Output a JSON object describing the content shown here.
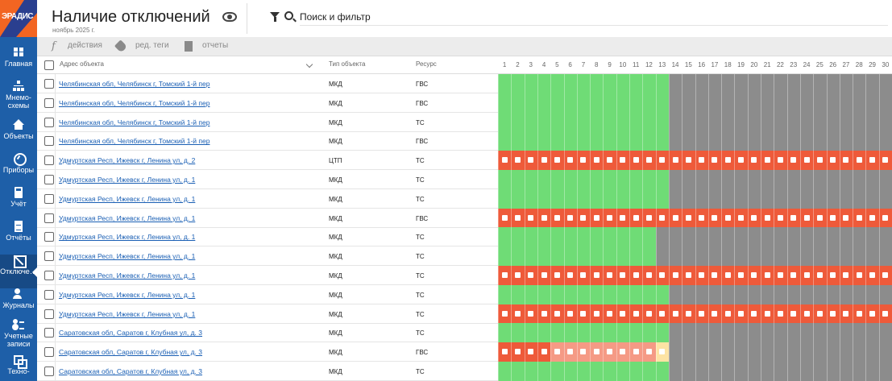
{
  "sidebar": {
    "logo_text": "ЭРАДИС",
    "items": [
      {
        "label": "Главная",
        "icon": "grid-icon",
        "cls": "i-grid",
        "active": false
      },
      {
        "label": "Мнемо-\nсхемы",
        "icon": "mnemonic-scheme-icon",
        "cls": "i-tree",
        "active": false
      },
      {
        "label": "Объекты",
        "icon": "home-icon",
        "cls": "i-home",
        "active": false
      },
      {
        "label": "Приборы",
        "icon": "gauge-icon",
        "cls": "i-gauge",
        "active": false
      },
      {
        "label": "Учёт",
        "icon": "calculator-icon",
        "cls": "i-calc",
        "active": false
      },
      {
        "label": "Отчёты",
        "icon": "document-icon",
        "cls": "i-doc",
        "active": false
      },
      {
        "label": "Отключе…",
        "icon": "outage-icon",
        "cls": "i-off",
        "active": true
      },
      {
        "label": "Журналы",
        "icon": "journal-icon",
        "cls": "i-journal",
        "active": false
      },
      {
        "label": "Учетные\nзаписи",
        "icon": "users-icon",
        "cls": "i-users",
        "active": false
      },
      {
        "label": "Техно-",
        "icon": "tech-icon",
        "cls": "i-tech",
        "active": false
      }
    ]
  },
  "header": {
    "title": "Наличие отключений",
    "subtitle": "ноябрь 2025 г.",
    "search_placeholder": "Поиск и фильтр"
  },
  "toolbar": {
    "actions_label": "действия",
    "tags_label": "ред. теги",
    "reports_label": "отчеты"
  },
  "table": {
    "columns": {
      "address": "Адрес объекта",
      "type": "Тип объекта",
      "resource": "Ресурс"
    },
    "days": [
      "1",
      "2",
      "3",
      "4",
      "5",
      "6",
      "7",
      "8",
      "9",
      "10",
      "11",
      "12",
      "13",
      "14",
      "15",
      "16",
      "17",
      "18",
      "19",
      "20",
      "21",
      "22",
      "23",
      "24",
      "25",
      "26",
      "27",
      "28",
      "29",
      "30"
    ],
    "status_colors": {
      "ok": "#6fdc76",
      "outage": "#ee5a3a",
      "partial": "#f59a85",
      "warn": "#fde3a4",
      "future": "#8c8c8c"
    },
    "rows": [
      {
        "address": "Челябинская обл, Челябинск г, Томский 1-й пер",
        "type": "МКД",
        "resource": "ГВС",
        "cells": "gggggggggggggfffffffffffffffff"
      },
      {
        "address": "Челябинская обл, Челябинск г, Томский 1-й пер",
        "type": "МКД",
        "resource": "ГВС",
        "cells": "gggggggggggggfffffffffffffffff"
      },
      {
        "address": "Челябинская обл, Челябинск г, Томский 1-й пер",
        "type": "МКД",
        "resource": "ТС",
        "cells": "gggggggggggggfffffffffffffffff"
      },
      {
        "address": "Челябинская обл, Челябинск г, Томский 1-й пер",
        "type": "МКД",
        "resource": "ГВС",
        "cells": "gggggggggggggfffffffffffffffff"
      },
      {
        "address": "Удмуртская Респ, Ижевск г, Ленина ул, д. 2",
        "type": "ЦТП",
        "resource": "ТС",
        "cells": "oooooooooooooooooooooooooooooo"
      },
      {
        "address": "Удмуртская Респ, Ижевск г, Ленина ул, д. 1",
        "type": "МКД",
        "resource": "ТС",
        "cells": "gggggggggggggfffffffffffffffff"
      },
      {
        "address": "Удмуртская Респ, Ижевск г, Ленина ул, д. 1",
        "type": "МКД",
        "resource": "ТС",
        "cells": "gggggggggggggfffffffffffffffff"
      },
      {
        "address": "Удмуртская Респ, Ижевск г, Ленина ул, д. 1",
        "type": "МКД",
        "resource": "ГВС",
        "cells": "oooooooooooooooooooooooooooooo"
      },
      {
        "address": "Удмуртская Респ, Ижевск г, Ленина ул, д. 1",
        "type": "МКД",
        "resource": "ТС",
        "cells": "ggggggggggggffffffffffffffffff"
      },
      {
        "address": "Удмуртская Респ, Ижевск г, Ленина ул, д. 1",
        "type": "МКД",
        "resource": "ТС",
        "cells": "ggggggggggggffffffffffffffffff"
      },
      {
        "address": "Удмуртская Респ, Ижевск г, Ленина ул, д. 1",
        "type": "МКД",
        "resource": "ТС",
        "cells": "oooooooooooooooooooooooooooooo"
      },
      {
        "address": "Удмуртская Респ, Ижевск г, Ленина ул, д. 1",
        "type": "МКД",
        "resource": "ТС",
        "cells": "gggggggggggggfffffffffffffffff"
      },
      {
        "address": "Удмуртская Респ, Ижевск г, Ленина ул, д. 1",
        "type": "МКД",
        "resource": "ТС",
        "cells": "oooooooooooooooooooooooooooooo"
      },
      {
        "address": "Саратовская обл, Саратов г, Клубная ул, д. 3",
        "type": "МКД",
        "resource": "ТС",
        "cells": "gggggggggggggfffffffffffffffff"
      },
      {
        "address": "Саратовская обл, Саратов г, Клубная ул, д. 3",
        "type": "МКД",
        "resource": "ГВС",
        "cells": "ooooppppppppwfffffffffffffffff"
      },
      {
        "address": "Саратовская обл, Саратов г, Клубная ул, д. 3",
        "type": "МКД",
        "resource": "ТС",
        "cells": "gggggggggggggfffffffffffffffff"
      }
    ]
  }
}
